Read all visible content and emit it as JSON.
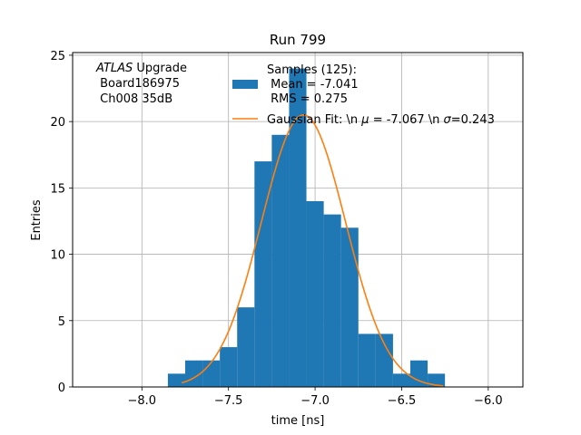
{
  "chart_data": {
    "type": "bar",
    "title": "Run 799",
    "xlabel": "time [ns]",
    "ylabel": "Entries",
    "xlim": [
      -8.4,
      -5.8
    ],
    "ylim": [
      0,
      25.2
    ],
    "grid": true,
    "x_ticks": [
      -8.0,
      -7.5,
      -7.0,
      -6.5,
      -6.0
    ],
    "x_tick_labels": [
      "−8.0",
      "−7.5",
      "−7.0",
      "−6.5",
      "−6.0"
    ],
    "y_ticks": [
      0,
      5,
      10,
      15,
      20,
      25
    ],
    "y_tick_labels": [
      "0",
      "5",
      "10",
      "15",
      "20",
      "25"
    ],
    "histogram": {
      "color": "#1f77b4",
      "bin_edges": [
        -7.85,
        -7.75,
        -7.65,
        -7.55,
        -7.45,
        -7.35,
        -7.25,
        -7.15,
        -7.05,
        -6.95,
        -6.85,
        -6.75,
        -6.65,
        -6.55,
        -6.45,
        -6.35,
        -6.25,
        -6.15
      ],
      "counts": [
        1,
        2,
        2,
        3,
        6,
        17,
        19,
        24,
        14,
        13,
        12,
        4,
        4,
        1,
        2,
        1,
        0
      ]
    },
    "fit": {
      "color": "#ff7f0e",
      "mu": -7.067,
      "sigma": 0.243,
      "amplitude": 20.5,
      "x_range": [
        -7.77,
        -6.26
      ]
    },
    "legend": {
      "position": "top-center",
      "samples_line1": "Samples (125):",
      "samples_line2": " Mean = -7.041",
      "samples_line3": " RMS = 0.275",
      "fit_label_prefix": "Gaussian Fit: \\n ",
      "fit_mu_symbol": "μ",
      "fit_label_mid": " = -7.067 \\n ",
      "fit_sigma_symbol": "σ",
      "fit_label_end": "=0.243"
    },
    "annotation": {
      "atlas": "ATLAS",
      "upgrade": " Upgrade",
      "line2": " Board186975",
      "line3": " Ch008 35dB"
    }
  }
}
